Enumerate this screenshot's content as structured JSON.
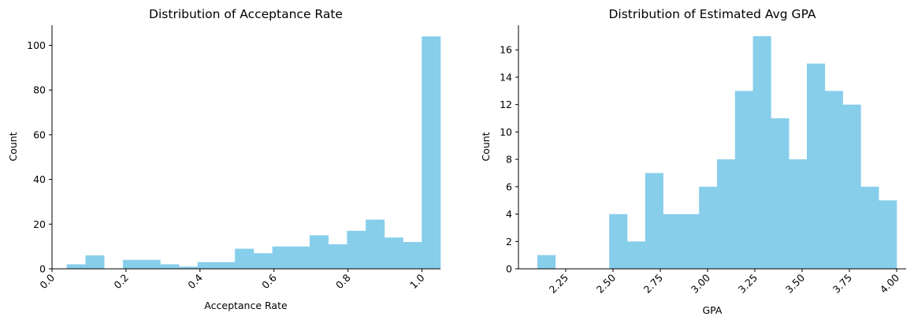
{
  "chart_data": [
    {
      "type": "bar",
      "title": "Distribution of Acceptance Rate",
      "xlabel": "Acceptance Rate",
      "ylabel": "Count",
      "xlim": [
        0.0,
        1.05
      ],
      "ylim": [
        0,
        109
      ],
      "xticks": [
        0.0,
        0.2,
        0.4,
        0.6,
        0.8,
        1.0
      ],
      "xtick_labels": [
        "0.0",
        "0.2",
        "0.4",
        "0.6",
        "0.8",
        "1.0"
      ],
      "yticks": [
        0,
        20,
        40,
        60,
        80,
        100
      ],
      "ytick_labels": [
        "0",
        "20",
        "40",
        "60",
        "80",
        "100"
      ],
      "xtick_rotation": 45,
      "color": "#87CEEB",
      "bin_edges": [
        0.04,
        0.0905,
        0.141,
        0.1915,
        0.242,
        0.2925,
        0.343,
        0.3935,
        0.444,
        0.4945,
        0.545,
        0.5955,
        0.646,
        0.6965,
        0.747,
        0.7975,
        0.848,
        0.8985,
        0.949,
        0.9995,
        1.05
      ],
      "values": [
        2,
        6,
        0,
        4,
        4,
        2,
        1,
        3,
        3,
        9,
        7,
        10,
        10,
        15,
        11,
        17,
        22,
        14,
        12,
        104
      ],
      "grid": false,
      "legend": false
    },
    {
      "type": "bar",
      "title": "Distribution of Estimated Avg GPA",
      "xlabel": "GPA",
      "ylabel": "Count",
      "xlim": [
        2.0,
        4.05
      ],
      "ylim": [
        0,
        17.8
      ],
      "xticks": [
        2.25,
        2.5,
        2.75,
        3.0,
        3.25,
        3.5,
        3.75,
        4.0
      ],
      "xtick_labels": [
        "2.25",
        "2.50",
        "2.75",
        "3.00",
        "3.25",
        "3.50",
        "3.75",
        "4.00"
      ],
      "yticks": [
        0,
        2,
        4,
        6,
        8,
        10,
        12,
        14,
        16
      ],
      "ytick_labels": [
        "0",
        "2",
        "4",
        "6",
        "8",
        "10",
        "12",
        "14",
        "16"
      ],
      "xtick_rotation": 45,
      "color": "#87CEEB",
      "bin_edges": [
        2.1,
        2.195,
        2.29,
        2.385,
        2.48,
        2.575,
        2.67,
        2.765,
        2.86,
        2.955,
        3.05,
        3.145,
        3.24,
        3.335,
        3.43,
        3.525,
        3.62,
        3.715,
        3.81,
        3.905,
        4.0
      ],
      "values": [
        1,
        0,
        0,
        0,
        4,
        2,
        7,
        4,
        4,
        6,
        8,
        13,
        17,
        11,
        8,
        15,
        13,
        12,
        6,
        5
      ],
      "grid": false,
      "legend": false
    }
  ]
}
